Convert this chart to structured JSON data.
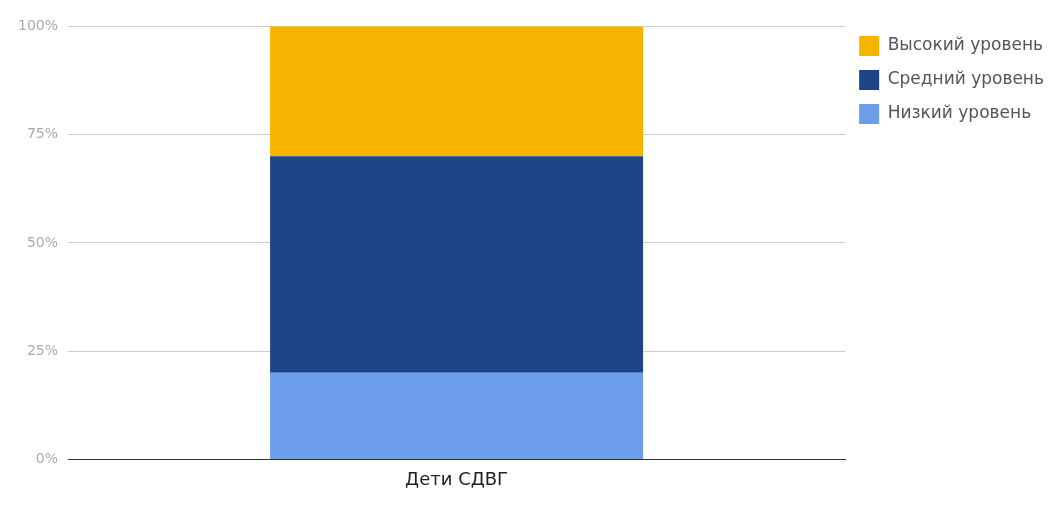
{
  "chart_data": {
    "type": "bar",
    "stacked": true,
    "categories": [
      "Дети СДВГ"
    ],
    "series": [
      {
        "name": "Низкий уровень",
        "color": "#6d9eeb",
        "values": [
          20
        ]
      },
      {
        "name": "Средний уровень",
        "color": "#1c4587",
        "values": [
          50
        ]
      },
      {
        "name": "Высокий уровень",
        "color": "#f4b400",
        "values": [
          30
        ]
      }
    ],
    "ylim": [
      0,
      100
    ],
    "yticks": [
      {
        "value": 0,
        "label": "0%"
      },
      {
        "value": 25,
        "label": "25%"
      },
      {
        "value": 50,
        "label": "50%"
      },
      {
        "value": 75,
        "label": "75%"
      },
      {
        "value": 100,
        "label": "100%"
      }
    ],
    "grid": "y",
    "legend": "top right"
  }
}
